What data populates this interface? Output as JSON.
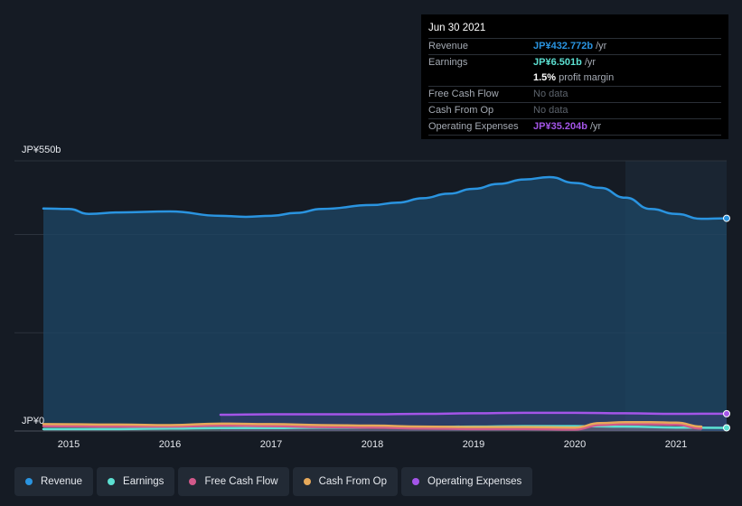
{
  "chart_data": {
    "type": "area",
    "ylim": [
      0,
      550
    ],
    "y_tick_labels": [
      "JP¥550b",
      "JP¥0"
    ],
    "x_tick_labels": [
      "2015",
      "2016",
      "2017",
      "2018",
      "2019",
      "2020",
      "2021"
    ],
    "x_range": [
      2014.75,
      2021.5
    ],
    "highlight_start": 2020.5,
    "series": [
      {
        "name": "Revenue",
        "color": "#2a94e0",
        "x": [
          2014.75,
          2015.0,
          2015.2,
          2015.5,
          2016.0,
          2016.5,
          2016.75,
          2017.0,
          2017.25,
          2017.5,
          2018.0,
          2018.25,
          2018.5,
          2018.75,
          2019.0,
          2019.25,
          2019.5,
          2019.75,
          2020.0,
          2020.25,
          2020.5,
          2020.75,
          2021.0,
          2021.25,
          2021.5
        ],
        "y": [
          453,
          452,
          442,
          445,
          447,
          438,
          436,
          438,
          444,
          452,
          460,
          465,
          474,
          483,
          493,
          503,
          512,
          517,
          505,
          495,
          475,
          452,
          442,
          432,
          433
        ]
      },
      {
        "name": "Earnings",
        "color": "#5ce0d2",
        "x": [
          2014.75,
          2015.5,
          2016.0,
          2016.5,
          2017.0,
          2017.5,
          2018.0,
          2018.5,
          2019.0,
          2019.5,
          2020.0,
          2020.5,
          2021.0,
          2021.5
        ],
        "y": [
          4,
          4,
          5,
          6,
          6,
          7,
          7,
          8,
          9,
          10,
          10,
          9,
          7,
          6.5
        ]
      },
      {
        "name": "Free Cash Flow",
        "color": "#d2598a",
        "x": [
          2014.75,
          2015.5,
          2016.0,
          2016.5,
          2017.0,
          2017.5,
          2018.0,
          2018.5,
          2019.0,
          2019.5,
          2020.0,
          2020.25,
          2020.5,
          2020.75,
          2021.0,
          2021.25
        ],
        "y": [
          10,
          9,
          9,
          11,
          10,
          8,
          7,
          5,
          4,
          4,
          3,
          12,
          14,
          14,
          13,
          5
        ]
      },
      {
        "name": "Cash From Op",
        "color": "#e7a95a",
        "x": [
          2014.75,
          2015.5,
          2016.0,
          2016.5,
          2017.0,
          2017.5,
          2018.0,
          2018.5,
          2019.0,
          2019.5,
          2020.0,
          2020.25,
          2020.5,
          2020.75,
          2021.0,
          2021.25
        ],
        "y": [
          14,
          13,
          12,
          15,
          14,
          12,
          11,
          9,
          8,
          8,
          7,
          16,
          18,
          18,
          17,
          9
        ]
      },
      {
        "name": "Operating Expenses",
        "color": "#a455e8",
        "x": [
          2016.5,
          2017.0,
          2017.5,
          2018.0,
          2018.5,
          2019.0,
          2019.5,
          2020.0,
          2020.5,
          2021.0,
          2021.5
        ],
        "y": [
          33,
          34,
          34,
          34,
          35,
          36,
          37,
          37,
          36,
          35,
          35.2
        ]
      }
    ]
  },
  "tooltip": {
    "date": "Jun 30 2021",
    "rows": [
      {
        "label": "Revenue",
        "value": "JP¥432.772b",
        "unit": "/yr",
        "color": "#2a94e0"
      },
      {
        "label": "Earnings",
        "value": "JP¥6.501b",
        "unit": "/yr",
        "color": "#5ce0d2"
      },
      {
        "label": "",
        "value": "1.5%",
        "unit": "profit margin",
        "color": "#ffffff"
      },
      {
        "label": "Free Cash Flow",
        "value": "No data",
        "unit": "",
        "color": "muted"
      },
      {
        "label": "Cash From Op",
        "value": "No data",
        "unit": "",
        "color": "muted"
      },
      {
        "label": "Operating Expenses",
        "value": "JP¥35.204b",
        "unit": "/yr",
        "color": "#a455e8"
      }
    ]
  },
  "legend": [
    {
      "label": "Revenue",
      "color": "#2a94e0"
    },
    {
      "label": "Earnings",
      "color": "#5ce0d2"
    },
    {
      "label": "Free Cash Flow",
      "color": "#d2598a"
    },
    {
      "label": "Cash From Op",
      "color": "#e7a95a"
    },
    {
      "label": "Operating Expenses",
      "color": "#a455e8"
    }
  ]
}
